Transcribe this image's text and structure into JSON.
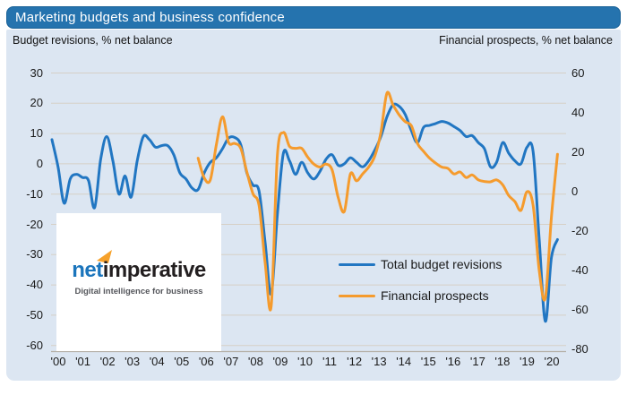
{
  "window": {
    "title": "Marketing budgets and business confidence"
  },
  "header": {
    "left_axis_title": "Budget revisions, % net balance",
    "right_axis_title": "Financial prospects, % net balance"
  },
  "legend": {
    "items": [
      {
        "label": "Total budget revisions",
        "color": "#2176C2"
      },
      {
        "label": "Financial prospects",
        "color": "#F59B2D"
      }
    ]
  },
  "logo": {
    "name_blue": "net",
    "name_dark": "imperative",
    "tagline": "Digital intelligence for business",
    "blue": "#1B75BC",
    "dark": "#231F20",
    "arrow_color": "#F6A12B"
  },
  "colors": {
    "title_bar_bg": "#2573AE",
    "panel_bg": "#DCE6F2",
    "grid_line": "#D6D0C6",
    "axis_line": "#B5B0A7",
    "text": "#1A1A1A",
    "series_blue": "#2176C2",
    "series_orange": "#F59B2D"
  },
  "chart_data": {
    "type": "line",
    "title": "Marketing budgets and business confidence",
    "frequency": "quarterly",
    "grid": "horizontal",
    "legend_position": "inside middle-right",
    "x_tick_labels": [
      "'00",
      "'01",
      "'02",
      "'03",
      "'04",
      "'05",
      "'06",
      "'07",
      "'08",
      "'09",
      "'10",
      "'11",
      "'12",
      "'13",
      "'14",
      "'15",
      "'16",
      "'17",
      "'18",
      "'19",
      "'20"
    ],
    "left_axis": {
      "label": "Budget revisions, % net balance",
      "ticks": [
        30,
        20,
        10,
        0,
        -10,
        -20,
        -30,
        -40,
        -50,
        -60
      ],
      "range": [
        -60,
        30
      ]
    },
    "right_axis": {
      "label": "Financial prospects, % net balance",
      "ticks": [
        60,
        40,
        20,
        0,
        -20,
        -40,
        -60,
        -80
      ],
      "range": [
        -80,
        60
      ]
    },
    "series": [
      {
        "name": "Total budget revisions",
        "axis": "left",
        "color": "#2176C2",
        "start": "2000 Q1",
        "values": [
          8,
          -1,
          -13,
          -5,
          -3.5,
          -4.5,
          -5.5,
          -14.5,
          1.5,
          9,
          1,
          -10,
          -4,
          -11,
          1,
          9,
          8,
          5.5,
          6,
          6,
          3,
          -3,
          -5,
          -8,
          -8.5,
          -3,
          0.5,
          2,
          5,
          8.5,
          8.7,
          6.3,
          -3,
          -7,
          -9,
          -26,
          -43,
          -17,
          3.5,
          1,
          -3.5,
          0.5,
          -3,
          -5,
          -2.5,
          1.5,
          3,
          -0.5,
          0,
          2,
          0.5,
          -1,
          1,
          4.5,
          9,
          15.5,
          19.5,
          19,
          16.3,
          11,
          7,
          12,
          12.7,
          13.3,
          14,
          13.5,
          12.3,
          11,
          9,
          9.3,
          7,
          5,
          -1,
          0.5,
          7,
          3.5,
          1,
          0,
          5.5,
          4,
          -25,
          -52,
          -31,
          -25
        ]
      },
      {
        "name": "Financial prospects",
        "axis": "right",
        "color": "#F59B2D",
        "start": "2006 Q1",
        "values": [
          17,
          7,
          6,
          24,
          38,
          25,
          24.5,
          22,
          10,
          -1,
          -7,
          -36,
          -58,
          18,
          30,
          23,
          22,
          22,
          17.5,
          14,
          12.5,
          14,
          11,
          -3,
          -10,
          9,
          5.5,
          9,
          12.5,
          18,
          30,
          50,
          44,
          39,
          35.5,
          33.5,
          24.5,
          20.5,
          17,
          14.5,
          12.5,
          11.8,
          9,
          10,
          7.2,
          8.5,
          6,
          5.2,
          5,
          6,
          3.5,
          -2,
          -5,
          -9.5,
          0,
          -7,
          -40,
          -54,
          -13,
          19
        ]
      }
    ]
  }
}
